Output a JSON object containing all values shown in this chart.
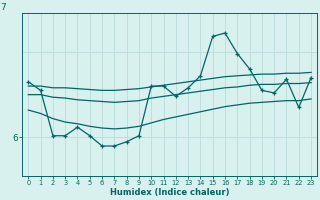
{
  "xlabel": "Humidex (Indice chaleur)",
  "background_color": "#d8f0ee",
  "grid_color": "#c0dedd",
  "line_color": "#006666",
  "xlim": [
    -0.5,
    23.5
  ],
  "ylim": [
    5.55,
    7.45
  ],
  "ytick_label": "6",
  "ytick_val": 6.0,
  "ytick_top_label": "7",
  "ytick_top_val": 7.0,
  "x": [
    0,
    1,
    2,
    3,
    4,
    5,
    6,
    7,
    8,
    9,
    10,
    11,
    12,
    13,
    14,
    15,
    16,
    17,
    18,
    19,
    20,
    21,
    22,
    23
  ],
  "y_main": [
    6.65,
    6.55,
    6.02,
    6.02,
    6.12,
    6.02,
    5.9,
    5.9,
    5.95,
    6.02,
    6.6,
    6.6,
    6.48,
    6.58,
    6.72,
    7.18,
    7.22,
    6.98,
    6.8,
    6.55,
    6.52,
    6.68,
    6.35,
    6.7
  ],
  "y_line_upper": [
    6.6,
    6.6,
    6.58,
    6.58,
    6.57,
    6.56,
    6.55,
    6.55,
    6.56,
    6.57,
    6.59,
    6.61,
    6.63,
    6.65,
    6.67,
    6.69,
    6.71,
    6.72,
    6.73,
    6.74,
    6.74,
    6.75,
    6.75,
    6.76
  ],
  "y_line_mid": [
    6.5,
    6.5,
    6.47,
    6.46,
    6.44,
    6.43,
    6.42,
    6.41,
    6.42,
    6.43,
    6.46,
    6.48,
    6.5,
    6.52,
    6.54,
    6.56,
    6.58,
    6.59,
    6.61,
    6.62,
    6.62,
    6.63,
    6.63,
    6.64
  ],
  "y_line_lower": [
    6.32,
    6.28,
    6.22,
    6.18,
    6.16,
    6.13,
    6.11,
    6.1,
    6.11,
    6.13,
    6.17,
    6.21,
    6.24,
    6.27,
    6.3,
    6.33,
    6.36,
    6.38,
    6.4,
    6.41,
    6.42,
    6.43,
    6.43,
    6.45
  ]
}
